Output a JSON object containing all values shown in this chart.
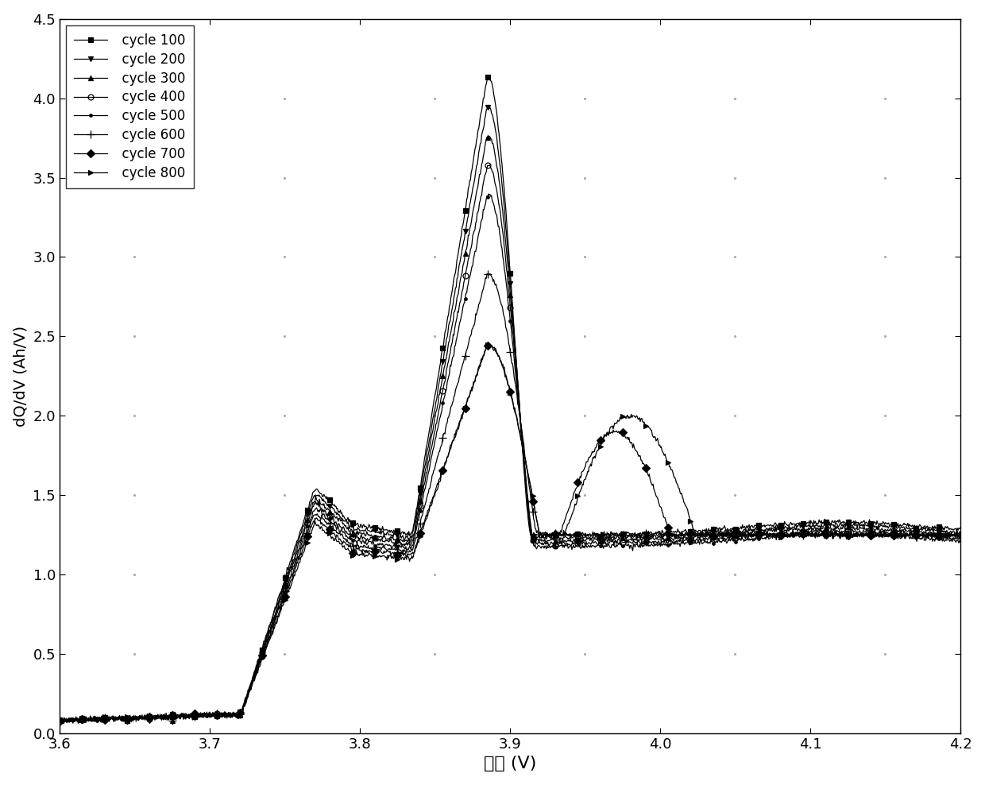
{
  "title": "",
  "xlabel": "电压 (V)",
  "ylabel": "dQ/dV (Ah/V)",
  "xlim": [
    3.6,
    4.2
  ],
  "ylim": [
    0,
    4.5
  ],
  "xticks": [
    3.6,
    3.7,
    3.8,
    3.9,
    4.0,
    4.1,
    4.2
  ],
  "yticks": [
    0,
    0.5,
    1.0,
    1.5,
    2.0,
    2.5,
    3.0,
    3.5,
    4.0,
    4.5
  ],
  "cycles": [
    100,
    200,
    300,
    400,
    500,
    600,
    700,
    800
  ],
  "markers": [
    "s",
    "v",
    "^",
    "o",
    ".",
    "+",
    "D",
    ">"
  ],
  "legend_loc": "upper left",
  "background_color": "#ffffff",
  "line_color": "#000000",
  "figsize": [
    12.4,
    9.88
  ],
  "dpi": 100
}
